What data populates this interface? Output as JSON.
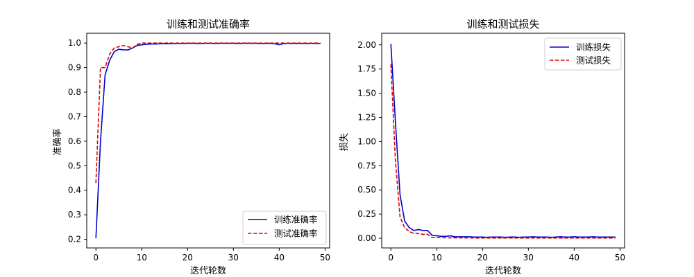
{
  "figure": {
    "background": "#ffffff"
  },
  "chart_data": [
    {
      "type": "line",
      "title": "训练和测试准确率",
      "xlabel": "迭代轮数",
      "ylabel": "准确率",
      "xlim": [
        -2,
        51
      ],
      "ylim": [
        0.165,
        1.04
      ],
      "xticks": [
        0,
        10,
        20,
        30,
        40,
        50
      ],
      "xtick_labels": [
        "0",
        "10",
        "20",
        "30",
        "40",
        "50"
      ],
      "yticks": [
        0.2,
        0.3,
        0.4,
        0.5,
        0.6,
        0.7,
        0.8,
        0.9,
        1.0
      ],
      "ytick_labels": [
        "0.2",
        "0.3",
        "0.4",
        "0.5",
        "0.6",
        "0.7",
        "0.8",
        "0.9",
        "1.0"
      ],
      "grid": false,
      "legend_position": "lower-right",
      "x": [
        0,
        1,
        2,
        3,
        4,
        5,
        6,
        7,
        8,
        9,
        10,
        11,
        12,
        13,
        14,
        15,
        16,
        17,
        18,
        19,
        20,
        21,
        22,
        23,
        24,
        25,
        26,
        27,
        28,
        29,
        30,
        31,
        32,
        33,
        34,
        35,
        36,
        37,
        38,
        39,
        40,
        41,
        42,
        43,
        44,
        45,
        46,
        47,
        48,
        49
      ],
      "series": [
        {
          "name": "训练准确率",
          "color": "#0000cc",
          "style": "solid",
          "values": [
            0.205,
            0.6,
            0.87,
            0.93,
            0.965,
            0.975,
            0.972,
            0.972,
            0.98,
            0.99,
            0.993,
            0.995,
            0.996,
            0.996,
            0.997,
            0.997,
            0.997,
            0.998,
            0.998,
            0.998,
            0.999,
            0.999,
            0.998,
            0.998,
            0.999,
            0.999,
            0.998,
            0.999,
            0.999,
            0.999,
            0.999,
            0.998,
            0.999,
            0.999,
            0.999,
            0.999,
            0.998,
            0.998,
            0.999,
            0.997,
            0.993,
            0.998,
            0.999,
            0.998,
            0.999,
            0.998,
            0.998,
            0.999,
            0.998,
            0.998
          ]
        },
        {
          "name": "测试准确率",
          "color": "#dd0000",
          "style": "dashed",
          "values": [
            0.43,
            0.9,
            0.9,
            0.955,
            0.98,
            0.985,
            0.99,
            0.985,
            0.98,
            0.995,
            1.0,
            1.0,
            1.0,
            1.0,
            1.0,
            1.0,
            1.0,
            1.0,
            1.0,
            1.0,
            1.0,
            1.0,
            1.0,
            1.0,
            1.0,
            1.0,
            1.0,
            1.0,
            1.0,
            1.0,
            1.0,
            1.0,
            1.0,
            1.0,
            1.0,
            1.0,
            1.0,
            1.0,
            1.0,
            1.0,
            1.0,
            1.0,
            1.0,
            1.0,
            1.0,
            1.0,
            1.0,
            1.0,
            1.0,
            1.0
          ]
        }
      ]
    },
    {
      "type": "line",
      "title": "训练和测试损失",
      "xlabel": "迭代轮数",
      "ylabel": "损失",
      "xlim": [
        -2,
        51
      ],
      "ylim": [
        -0.1,
        2.12
      ],
      "xticks": [
        0,
        10,
        20,
        30,
        40,
        50
      ],
      "xtick_labels": [
        "0",
        "10",
        "20",
        "30",
        "40",
        "50"
      ],
      "yticks": [
        0.0,
        0.25,
        0.5,
        0.75,
        1.0,
        1.25,
        1.5,
        1.75,
        2.0
      ],
      "ytick_labels": [
        "0.00",
        "0.25",
        "0.50",
        "0.75",
        "1.00",
        "1.25",
        "1.50",
        "1.75",
        "2.00"
      ],
      "grid": false,
      "legend_position": "upper-right",
      "x": [
        0,
        1,
        2,
        3,
        4,
        5,
        6,
        7,
        8,
        9,
        10,
        11,
        12,
        13,
        14,
        15,
        16,
        17,
        18,
        19,
        20,
        21,
        22,
        23,
        24,
        25,
        26,
        27,
        28,
        29,
        30,
        31,
        32,
        33,
        34,
        35,
        36,
        37,
        38,
        39,
        40,
        41,
        42,
        43,
        44,
        45,
        46,
        47,
        48,
        49
      ],
      "series": [
        {
          "name": "训练损失",
          "color": "#0000cc",
          "style": "solid",
          "values": [
            2.01,
            1.2,
            0.45,
            0.18,
            0.11,
            0.08,
            0.09,
            0.08,
            0.08,
            0.03,
            0.025,
            0.02,
            0.02,
            0.025,
            0.015,
            0.015,
            0.015,
            0.015,
            0.012,
            0.012,
            0.012,
            0.01,
            0.012,
            0.012,
            0.012,
            0.01,
            0.012,
            0.012,
            0.01,
            0.012,
            0.012,
            0.015,
            0.012,
            0.012,
            0.012,
            0.01,
            0.012,
            0.015,
            0.012,
            0.012,
            0.015,
            0.012,
            0.012,
            0.012,
            0.015,
            0.012,
            0.012,
            0.012,
            0.012,
            0.012
          ]
        },
        {
          "name": "测试损失",
          "color": "#dd0000",
          "style": "dashed",
          "values": [
            1.8,
            0.8,
            0.22,
            0.11,
            0.07,
            0.05,
            0.05,
            0.04,
            0.04,
            0.01,
            0.008,
            0.005,
            0.005,
            0.004,
            0.004,
            0.003,
            0.003,
            0.003,
            0.003,
            0.002,
            0.002,
            0.002,
            0.002,
            0.002,
            0.002,
            0.002,
            0.002,
            0.002,
            0.002,
            0.002,
            0.002,
            0.002,
            0.002,
            0.002,
            0.002,
            0.002,
            0.002,
            0.002,
            0.002,
            0.002,
            0.002,
            0.002,
            0.002,
            0.002,
            0.002,
            0.002,
            0.002,
            0.002,
            0.002,
            0.002
          ]
        }
      ]
    }
  ]
}
